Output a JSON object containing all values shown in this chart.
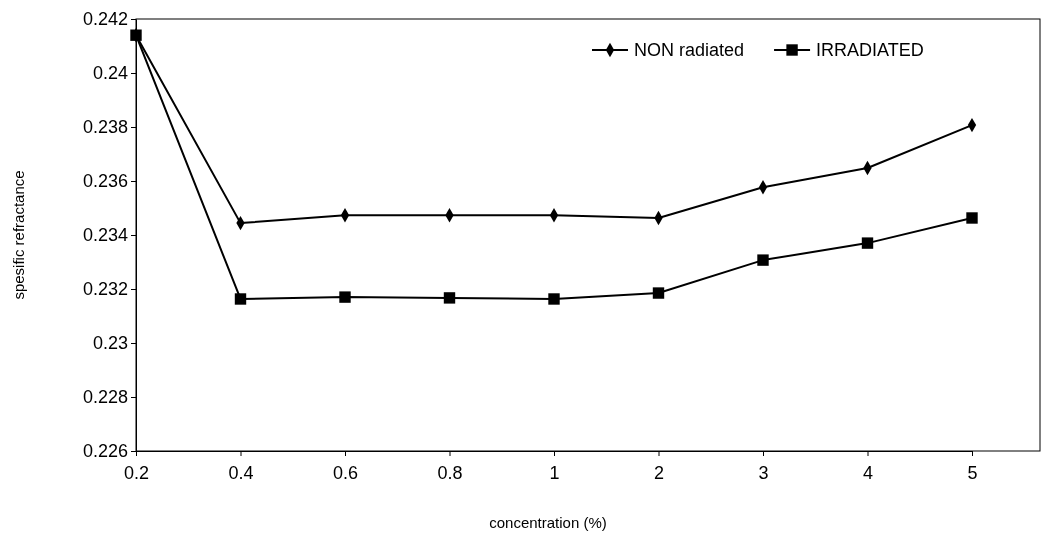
{
  "chart_data": {
    "type": "line",
    "xlabel": "concentration (%)",
    "ylabel": "spesific refractance",
    "categories": [
      "0.2",
      "0.4",
      "0.6",
      "0.8",
      "1",
      "2",
      "3",
      "4",
      "5"
    ],
    "series": [
      {
        "name": "NON radiated",
        "color": "#000000",
        "marker": "diamond",
        "values": [
          0.2414,
          0.23444,
          0.23473,
          0.23473,
          0.23473,
          0.23463,
          0.23577,
          0.23648,
          0.23807
        ]
      },
      {
        "name": "IRRADIATED",
        "color": "#000000",
        "marker": "square",
        "values": [
          0.2414,
          0.23163,
          0.2317,
          0.23167,
          0.23163,
          0.23185,
          0.23307,
          0.2337,
          0.23463
        ]
      }
    ],
    "ylim": [
      0.226,
      0.242
    ],
    "yticks": [
      0.226,
      0.228,
      0.23,
      0.232,
      0.234,
      0.236,
      0.238,
      0.24,
      0.242
    ],
    "grid": false,
    "legend": "top right"
  }
}
